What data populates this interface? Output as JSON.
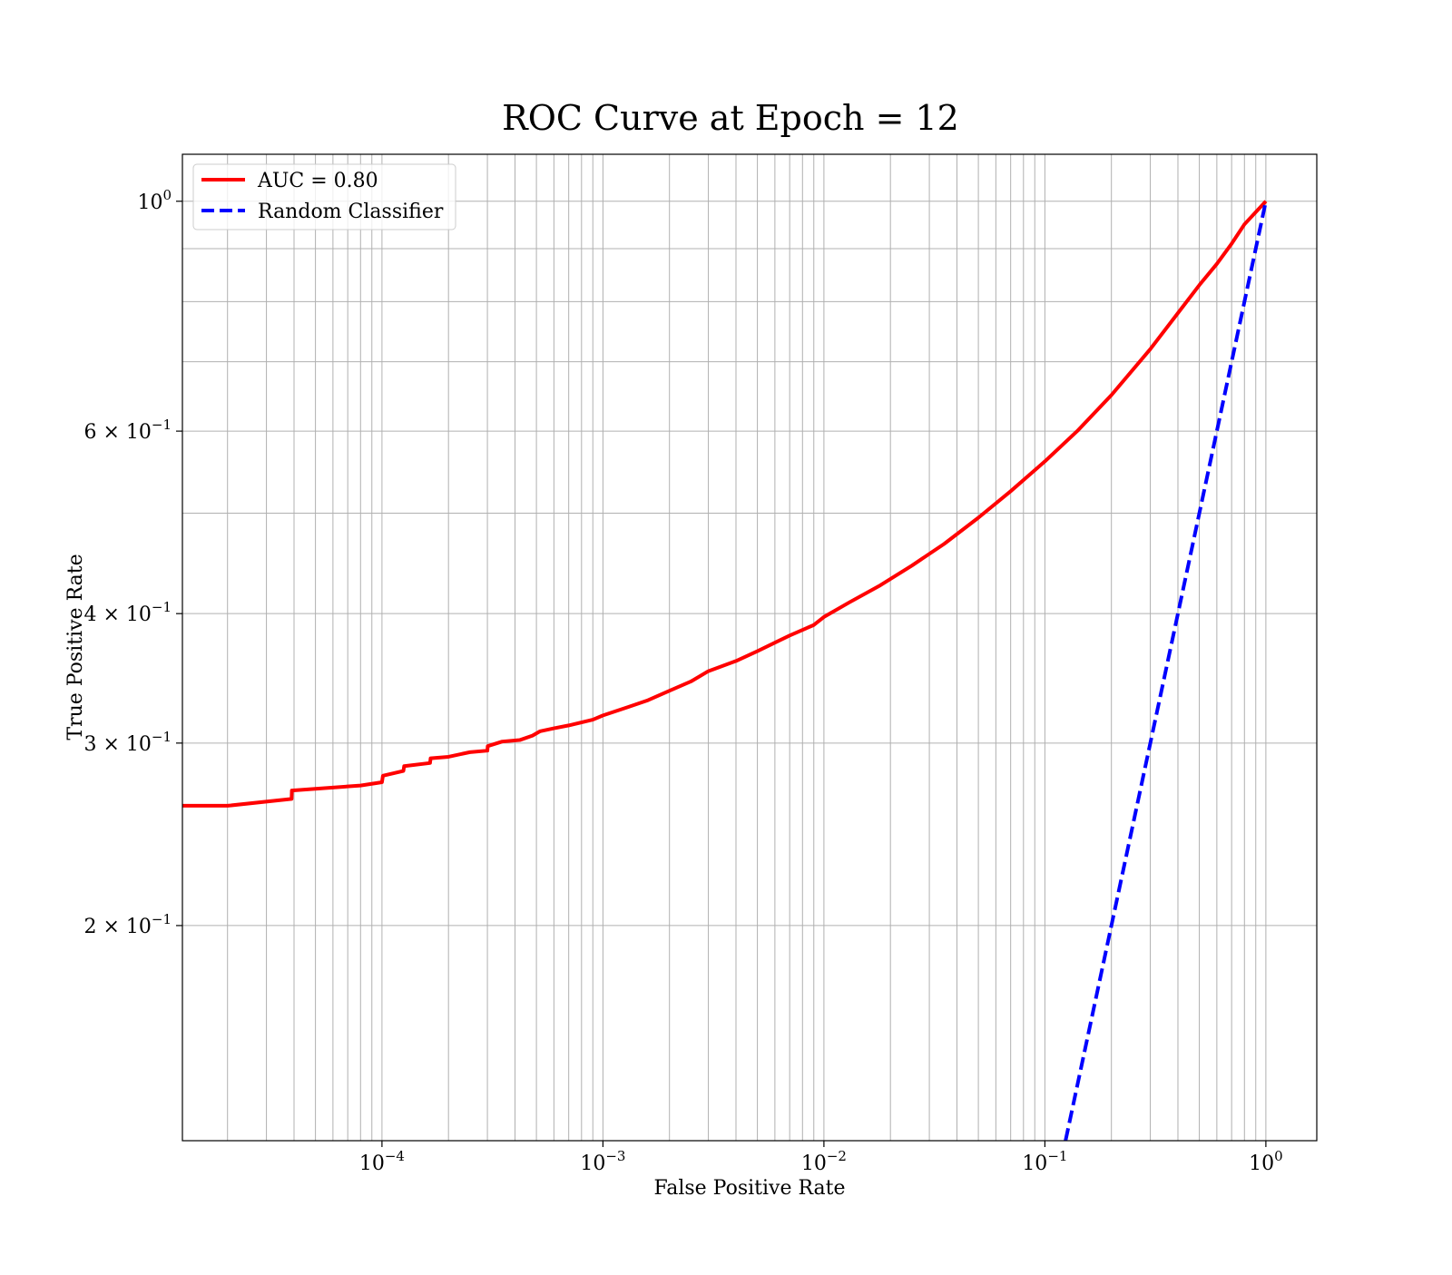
{
  "chart_data": {
    "type": "line",
    "title": "ROC Curve at Epoch = 12",
    "xlabel": "False Positive Rate",
    "ylabel": "True Positive Rate",
    "xscale": "log",
    "yscale": "log",
    "xlim": [
      1.25e-05,
      1.7
    ],
    "ylim": [
      0.124,
      1.11
    ],
    "grid": "on (major and minor)",
    "legend_position": "top-left",
    "x_ticks": [
      {
        "base": "10",
        "exp": "−4",
        "value": 0.0001
      },
      {
        "base": "10",
        "exp": "−3",
        "value": 0.001
      },
      {
        "base": "10",
        "exp": "−2",
        "value": 0.01
      },
      {
        "base": "10",
        "exp": "−1",
        "value": 0.1
      },
      {
        "base": "10",
        "exp": "0",
        "value": 1
      }
    ],
    "y_ticks": [
      {
        "base": "2 × 10",
        "exp": "−1",
        "value": 0.2
      },
      {
        "base": "3 × 10",
        "exp": "−1",
        "value": 0.3
      },
      {
        "base": "4 × 10",
        "exp": "−1",
        "value": 0.4
      },
      {
        "base": "6 × 10",
        "exp": "−1",
        "value": 0.6
      },
      {
        "base": "10",
        "exp": "0",
        "value": 1
      }
    ],
    "series": [
      {
        "name": "AUC = 0.80",
        "color": "#ff0000",
        "style": "solid",
        "x": [
          1.25e-05,
          2e-05,
          3.9e-05,
          3.91e-05,
          8e-05,
          0.0001,
          0.000101,
          0.000125,
          0.000126,
          0.000165,
          0.000166,
          0.0002,
          0.00025,
          0.0003,
          0.000301,
          0.00035,
          0.00042,
          0.00048,
          0.00052,
          0.0006,
          0.0007,
          0.0009,
          0.001,
          0.0013,
          0.0016,
          0.002,
          0.0025,
          0.003,
          0.004,
          0.005,
          0.006,
          0.007,
          0.009,
          0.01,
          0.013,
          0.018,
          0.025,
          0.035,
          0.05,
          0.07,
          0.1,
          0.14,
          0.2,
          0.3,
          0.4,
          0.5,
          0.6,
          0.7,
          0.8,
          1.0
        ],
        "y": [
          0.261,
          0.261,
          0.265,
          0.27,
          0.273,
          0.275,
          0.279,
          0.282,
          0.285,
          0.287,
          0.29,
          0.291,
          0.294,
          0.295,
          0.298,
          0.301,
          0.302,
          0.305,
          0.308,
          0.31,
          0.312,
          0.316,
          0.319,
          0.325,
          0.33,
          0.337,
          0.344,
          0.352,
          0.36,
          0.368,
          0.375,
          0.381,
          0.39,
          0.397,
          0.41,
          0.426,
          0.445,
          0.467,
          0.495,
          0.525,
          0.561,
          0.6,
          0.65,
          0.72,
          0.78,
          0.83,
          0.87,
          0.91,
          0.95,
          1.0
        ]
      },
      {
        "name": "Random Classifier",
        "color": "#0000ff",
        "style": "dashed",
        "x": [
          0.124,
          1.0
        ],
        "y": [
          0.124,
          1.0
        ]
      }
    ]
  }
}
